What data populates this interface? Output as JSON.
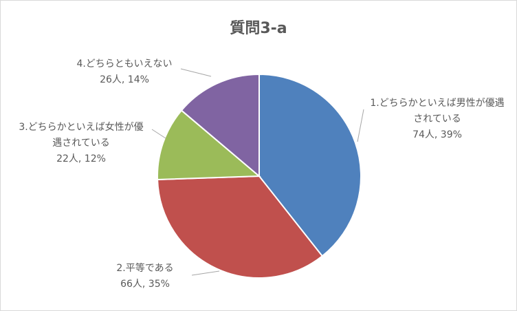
{
  "chart_data": {
    "type": "pie",
    "title": "質問3-a",
    "categories": [
      "1.どちらかといえば男性が優遇されている",
      "2.平等である",
      "3.どちらかといえば女性が優遇されている",
      "4.どちらともいえない"
    ],
    "values": [
      74,
      66,
      22,
      26
    ],
    "value_labels": [
      "74人, 39%",
      "66人, 35%",
      "22人, 12%",
      "26人, 14%"
    ],
    "colors": [
      "#4f81bd",
      "#c0504d",
      "#9bbb59",
      "#8064a2"
    ]
  }
}
